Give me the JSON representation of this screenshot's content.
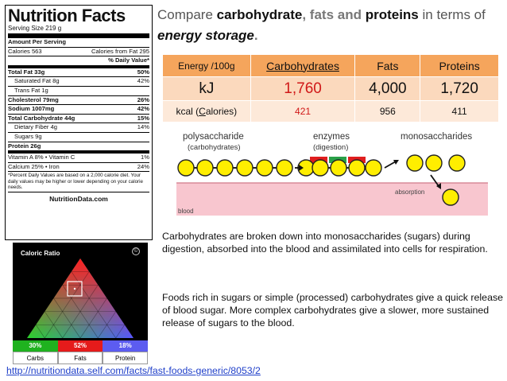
{
  "nutrition": {
    "title": "Nutrition Facts",
    "serving": "Serving Size  219 g",
    "rows": [
      {
        "l": "Amount Per Serving",
        "r": "",
        "cls": "b"
      },
      {
        "l": "Calories 563",
        "r": "Calories from Fat 295",
        "cls": ""
      },
      {
        "l": "",
        "r": "% Daily Value*",
        "cls": "b thick"
      },
      {
        "l": "Total Fat 33g",
        "r": "50%",
        "cls": "b"
      },
      {
        "l": "Saturated Fat 8g",
        "r": "42%",
        "cls": "ind"
      },
      {
        "l": "Trans Fat 1g",
        "r": "",
        "cls": "ind"
      },
      {
        "l": "Cholesterol 79mg",
        "r": "26%",
        "cls": "b"
      },
      {
        "l": "Sodium 1007mg",
        "r": "42%",
        "cls": "b"
      },
      {
        "l": "Total Carbohydrate 44g",
        "r": "15%",
        "cls": "b"
      },
      {
        "l": "Dietary Fiber 4g",
        "r": "14%",
        "cls": "ind"
      },
      {
        "l": "Sugars 9g",
        "r": "",
        "cls": "ind"
      },
      {
        "l": "Protein 26g",
        "r": "",
        "cls": "b thick"
      },
      {
        "l": "Vitamin A       8%  •  Vitamin C",
        "r": "1%",
        "cls": ""
      },
      {
        "l": "Calcium        25%  •  Iron",
        "r": "24%",
        "cls": ""
      }
    ],
    "footnote": "*Percent Daily Values are based on a 2,000 calorie diet. Your daily values may be higher or lower depending on your calorie needs.",
    "source": "NutritionData.com"
  },
  "caloric_ratio": {
    "title": "Caloric Ratio",
    "copyright": "©",
    "bars": [
      {
        "pct": "30%",
        "label": "Carbs",
        "color": "#1fb21f"
      },
      {
        "pct": "52%",
        "label": "Fats",
        "color": "#e51b1b"
      },
      {
        "pct": "18%",
        "label": "Protein",
        "color": "#5c5cf0"
      }
    ]
  },
  "heading": {
    "t1": "Compare ",
    "t2": "carbohydrate",
    "t3": ", ",
    "t4": "fats",
    "t5": " and ",
    "t6": "proteins",
    "t7": " in terms of ",
    "t8": "energy storage",
    "t9": "."
  },
  "energy_table": {
    "headers": [
      "Energy /100g",
      "Carbohydrates",
      "Fats",
      "Proteins"
    ],
    "kj": {
      "label": "kJ",
      "carbs": "1,760",
      "fats": "4,000",
      "proteins": "1,720"
    },
    "kcal": {
      "label_pre": "kcal (",
      "label_c": "C",
      "label_post": "alories)",
      "carbs": "421",
      "fats": "956",
      "proteins": "411"
    }
  },
  "diagram": {
    "polysaccharide": "polysaccharide",
    "poly_sub": "(carbohydrates)",
    "enzymes": "enzymes",
    "enzymes_sub": "(digestion)",
    "monosaccharides": "monosaccharides",
    "absorption": "absorption",
    "blood": "blood"
  },
  "text": {
    "p1": "Carbohydrates are broken down into monosaccharides (sugars) during digestion, absorbed into the blood and assimilated into cells for respiration.",
    "p2": "Foods rich in sugars or simple (processed) carbohydrates give a quick release of blood sugar. More complex carbohydrates give a slower, more sustained release of sugars to the blood."
  },
  "link": "http://nutritiondata.self.com/facts/fast-foods-generic/8053/2"
}
